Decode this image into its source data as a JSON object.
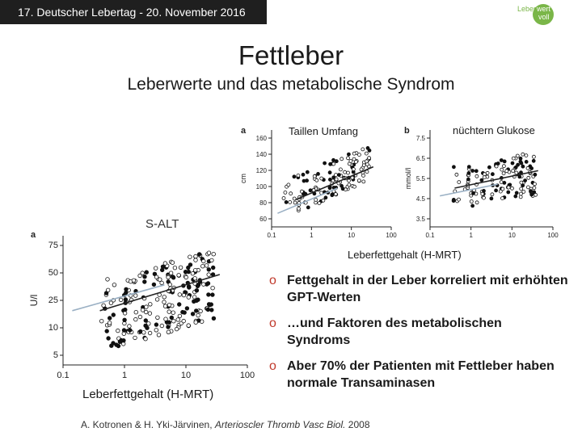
{
  "header": {
    "event": "17. Deutscher Lebertag - 20. November 2016",
    "logo_top": "Leber",
    "logo_mid": "wert",
    "logo_bottom": "voll",
    "logo_color": "#7ab648"
  },
  "title": "Fettleber",
  "subtitle": "Leberwerte und das metabolische Syndrom",
  "labels": {
    "taille": "Taillen Umfang",
    "glukose": "nüchtern Glukose",
    "fett_top": "Leberfettgehalt (H-MRT)",
    "fett_bottom": "Leberfettgehalt (H-MRT)"
  },
  "bullets": [
    {
      "marker": "o",
      "text": "Fettgehalt in der Leber korreliert mit erhöhten GPT-Werten"
    },
    {
      "marker": "o",
      "text": "…und Faktoren des metabolischen Syndroms"
    },
    {
      "marker": "o",
      "text": "Aber 70% der Patienten mit Fettleber haben normale Transaminasen"
    }
  ],
  "citation": {
    "authors": "A. Kotronen & H. Yki-Järvinen, ",
    "journal": "Arterioscler Thromb Vasc Biol.",
    "year": " 2008"
  },
  "chart_data": [
    {
      "type": "scatter",
      "panel": "a",
      "ylabel": "cm",
      "xscale": "log",
      "xticks": [
        "0.1",
        "1",
        "10",
        "100"
      ],
      "yticks": [
        "60",
        "80",
        "100",
        "120",
        "140",
        "160"
      ],
      "ylim": [
        60,
        160
      ]
    },
    {
      "type": "scatter",
      "panel": "b",
      "ylabel": "mmol/l",
      "xscale": "log",
      "xticks": [
        "0.1",
        "1",
        "10",
        "100"
      ],
      "yticks": [
        "3.5",
        "4.5",
        "5.5",
        "6.5",
        "7.5"
      ],
      "ylim": [
        3.5,
        7.5
      ]
    },
    {
      "type": "scatter",
      "panel": "a",
      "title": "S-ALT",
      "ylabel": "U/l",
      "xscale": "log",
      "yscale": "log",
      "xticks": [
        "0.1",
        "1",
        "10",
        "100"
      ],
      "yticks": [
        "5",
        "10",
        "25",
        "50",
        "75"
      ]
    }
  ]
}
